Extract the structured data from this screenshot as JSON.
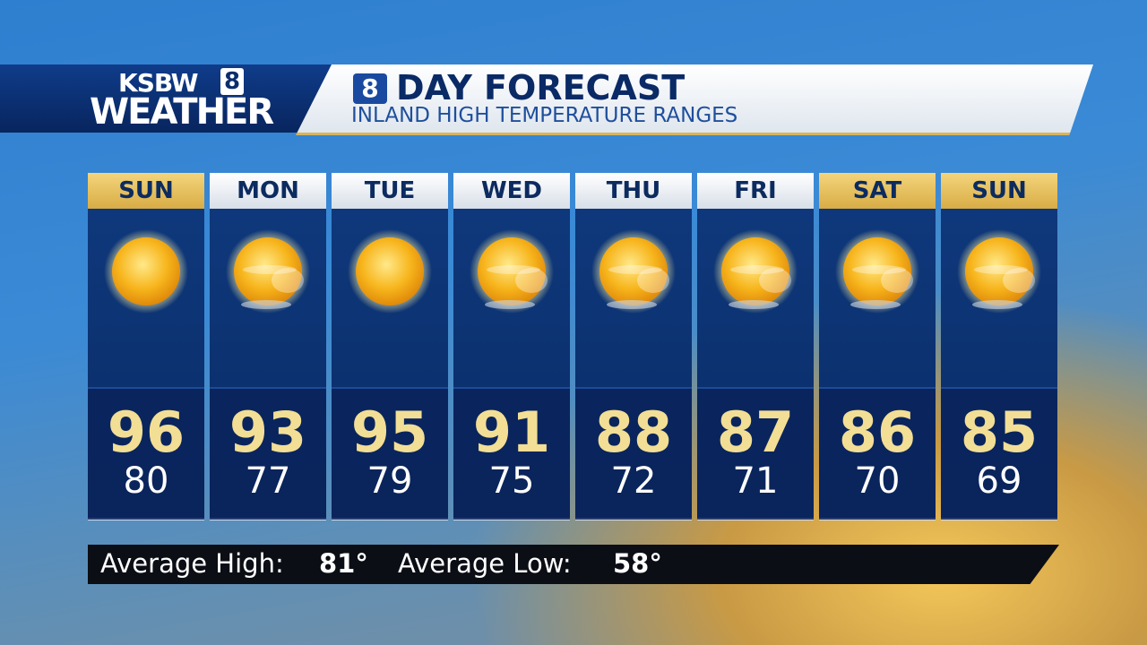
{
  "header": {
    "logo": {
      "station": "KSBW",
      "channel": "8",
      "label": "WEATHER"
    },
    "badge": "8",
    "title": "DAY FORECAST",
    "subtitle": "INLAND HIGH TEMPERATURE RANGES"
  },
  "days": [
    {
      "name": "SUN",
      "high": 96,
      "low": 80
    },
    {
      "name": "MON",
      "high": 93,
      "low": 77
    },
    {
      "name": "TUE",
      "high": 95,
      "low": 79
    },
    {
      "name": "WED",
      "high": 91,
      "low": 75
    },
    {
      "name": "THU",
      "high": 88,
      "low": 72
    },
    {
      "name": "FRI",
      "high": 87,
      "low": 71
    },
    {
      "name": "SAT",
      "high": 86,
      "low": 70
    },
    {
      "name": "SUN",
      "high": 85,
      "low": 69
    }
  ],
  "footer": {
    "high_label": "Average High:",
    "high_value": "81°",
    "low_label": "Average Low:",
    "low_value": "58°"
  }
}
